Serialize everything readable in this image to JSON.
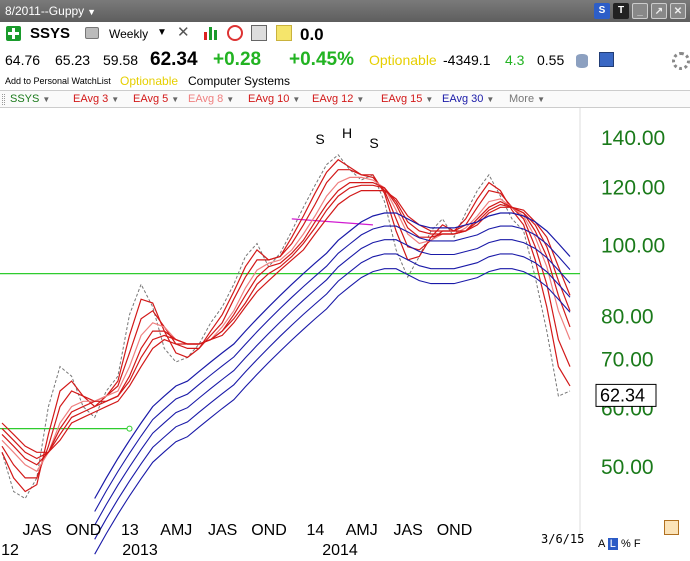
{
  "window": {
    "title": "8/2011--Guppy",
    "buttons": [
      "S",
      "T",
      "",
      "",
      ""
    ]
  },
  "toolbar": {
    "symbol": "SSYS",
    "period": "Weekly",
    "value": "0.0"
  },
  "quote": {
    "open": "64.76",
    "high": "65.23",
    "low": "59.58",
    "last": "62.34",
    "change": "+0.28",
    "change_pct": "+0.45%",
    "optionable": "Optionable",
    "stat1": "-4349.1",
    "stat2": "4.3",
    "stat3": "0.55"
  },
  "info": {
    "watchlist": "Add to Personal WatchList",
    "optionable": "Optionable",
    "company": "Computer Systems"
  },
  "legend": [
    {
      "label": "SSYS",
      "color": "#1a7a1a"
    },
    {
      "label": "EAvg 3",
      "color": "#d21919"
    },
    {
      "label": "EAvg 5",
      "color": "#d21919"
    },
    {
      "label": "EAvg 8",
      "color": "#ef8080"
    },
    {
      "label": "EAvg 10",
      "color": "#d21919"
    },
    {
      "label": "EAvg 12",
      "color": "#d21919"
    },
    {
      "label": "EAvg 15",
      "color": "#d21919"
    },
    {
      "label": "EAvg 30",
      "color": "#1a1aa8"
    },
    {
      "label": "More",
      "color": "#777777"
    }
  ],
  "chart_data": {
    "type": "line",
    "y_scale": "log",
    "ylim": [
      43,
      150
    ],
    "y_ticks": [
      "140.00",
      "120.00",
      "100.00",
      "80.00",
      "70.00",
      "60.00",
      "50.00"
    ],
    "y_tick_values": [
      140,
      120,
      100,
      80,
      70,
      60,
      50
    ],
    "last_price_label": "62.34",
    "last_price": 62.34,
    "x_tick_labels": [
      "JAS",
      "OND",
      "13",
      "AMJ",
      "JAS",
      "OND",
      "14",
      "AMJ",
      "JAS",
      "OND"
    ],
    "year_labels": [
      "12",
      "2013",
      "2014"
    ],
    "end_date": "3/6/15",
    "annotations": [
      "S",
      "H",
      "S"
    ],
    "horizontal_lines": [
      {
        "value": 91,
        "color": "#2ecc2e"
      },
      {
        "value": 56,
        "color": "#2ecc2e",
        "end": "13"
      }
    ],
    "series": [
      {
        "name": "SSYS",
        "values": [
          52,
          46,
          45,
          48,
          60,
          68,
          66,
          60,
          58,
          63,
          66,
          80,
          88,
          82,
          72,
          69,
          70,
          73,
          78,
          82,
          88,
          96,
          100,
          93,
          97,
          104,
          112,
          120,
          128,
          132,
          126,
          122,
          124,
          114,
          98,
          90,
          96,
          104,
          108,
          102,
          110,
          118,
          124,
          116,
          108,
          104,
          90,
          76,
          62,
          63
        ]
      },
      {
        "name": "EAvg 3",
        "values": [
          52,
          48,
          46,
          47,
          55,
          63,
          65,
          62,
          60,
          62,
          65,
          75,
          84,
          83,
          76,
          71,
          70,
          72,
          76,
          80,
          86,
          93,
          98,
          95,
          96,
          102,
          109,
          117,
          125,
          130,
          127,
          124,
          124,
          117,
          104,
          95,
          96,
          102,
          106,
          104,
          108,
          115,
          121,
          118,
          111,
          106,
          95,
          82,
          68,
          64
        ]
      },
      {
        "name": "EAvg 5",
        "values": [
          53,
          50,
          48,
          48,
          53,
          60,
          63,
          62,
          61,
          62,
          64,
          71,
          79,
          81,
          77,
          73,
          72,
          72,
          75,
          78,
          84,
          90,
          95,
          95,
          96,
          100,
          106,
          113,
          121,
          126,
          126,
          124,
          123,
          118,
          108,
          99,
          98,
          101,
          104,
          104,
          106,
          112,
          118,
          117,
          112,
          108,
          99,
          88,
          74,
          68
        ]
      },
      {
        "name": "EAvg 8",
        "values": [
          54,
          52,
          50,
          49,
          52,
          57,
          60,
          61,
          61,
          62,
          63,
          68,
          75,
          78,
          77,
          74,
          73,
          73,
          74,
          77,
          81,
          87,
          92,
          94,
          95,
          98,
          103,
          109,
          116,
          121,
          123,
          123,
          122,
          119,
          111,
          103,
          100,
          101,
          103,
          103,
          105,
          109,
          114,
          115,
          112,
          109,
          102,
          93,
          81,
          74
        ]
      },
      {
        "name": "EAvg 10",
        "values": [
          55,
          53,
          51,
          50,
          52,
          56,
          59,
          60,
          61,
          61,
          62,
          66,
          72,
          76,
          76,
          74,
          73,
          73,
          74,
          76,
          80,
          85,
          90,
          93,
          94,
          97,
          101,
          107,
          113,
          118,
          121,
          121,
          121,
          119,
          113,
          105,
          102,
          102,
          103,
          103,
          104,
          108,
          112,
          114,
          112,
          110,
          104,
          96,
          85,
          77
        ]
      },
      {
        "name": "EAvg 12",
        "values": [
          56,
          54,
          52,
          51,
          52,
          55,
          58,
          59,
          60,
          61,
          62,
          65,
          70,
          74,
          75,
          74,
          73,
          73,
          74,
          76,
          79,
          83,
          88,
          91,
          93,
          96,
          100,
          105,
          111,
          116,
          119,
          120,
          120,
          119,
          114,
          107,
          104,
          103,
          103,
          103,
          104,
          107,
          111,
          113,
          112,
          110,
          106,
          99,
          89,
          81
        ]
      },
      {
        "name": "EAvg 15",
        "values": [
          57,
          55,
          53,
          52,
          52,
          54,
          57,
          58,
          59,
          60,
          61,
          64,
          68,
          72,
          74,
          73,
          73,
          73,
          74,
          75,
          78,
          82,
          86,
          89,
          92,
          95,
          98,
          103,
          108,
          113,
          116,
          118,
          118,
          118,
          115,
          109,
          106,
          104,
          104,
          104,
          104,
          106,
          110,
          112,
          112,
          111,
          107,
          102,
          93,
          85
        ]
      },
      {
        "name": "EAvg 30",
        "values": [
          null,
          null,
          null,
          null,
          null,
          null,
          null,
          null,
          45,
          48,
          51,
          54,
          57,
          60,
          62,
          64,
          65,
          67,
          69,
          71,
          73,
          76,
          79,
          82,
          85,
          88,
          91,
          94,
          97,
          101,
          104,
          107,
          109,
          110,
          110,
          108,
          106,
          105,
          105,
          105,
          106,
          107,
          109,
          110,
          110,
          109,
          107,
          104,
          100,
          96
        ]
      }
    ]
  },
  "footer": {
    "text": "A L % F"
  }
}
